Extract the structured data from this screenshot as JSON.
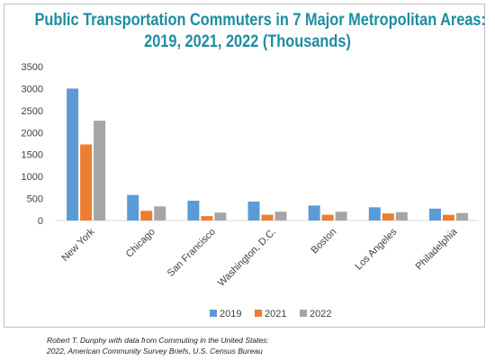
{
  "title_line_1": "Public Transportation Commuters in 7 Major Metropolitan Areas:",
  "title_line_2": "2019, 2021, 2022 (Thousands)",
  "source_line_1": "Robert T. Dunphy with data from Commuting in the United States:",
  "source_line_2": "2022, American Community Survey Briefs, U.S. Census Bureau",
  "chart_data": {
    "type": "bar",
    "title": "Public Transportation Commuters in 7 Major Metropolitan Areas: 2019, 2021, 2022 (Thousands)",
    "categories": [
      "New York",
      "Chicago",
      "San Francisco",
      "Washington, D.C.",
      "Boston",
      "Los Angeles",
      "Philadelphia"
    ],
    "series": [
      {
        "name": "2019",
        "color": "#5b9bd5",
        "values": [
          3000,
          580,
          450,
          430,
          340,
          300,
          270
        ]
      },
      {
        "name": "2021",
        "color": "#ed7d31",
        "values": [
          1730,
          220,
          100,
          130,
          130,
          160,
          130
        ]
      },
      {
        "name": "2022",
        "color": "#a5a5a5",
        "values": [
          2270,
          320,
          180,
          200,
          200,
          190,
          170
        ]
      }
    ],
    "ylim": [
      0,
      3500
    ],
    "yticks": [
      0,
      500,
      1000,
      1500,
      2000,
      2500,
      3000,
      3500
    ],
    "grid": false,
    "legend_position": "bottom"
  }
}
